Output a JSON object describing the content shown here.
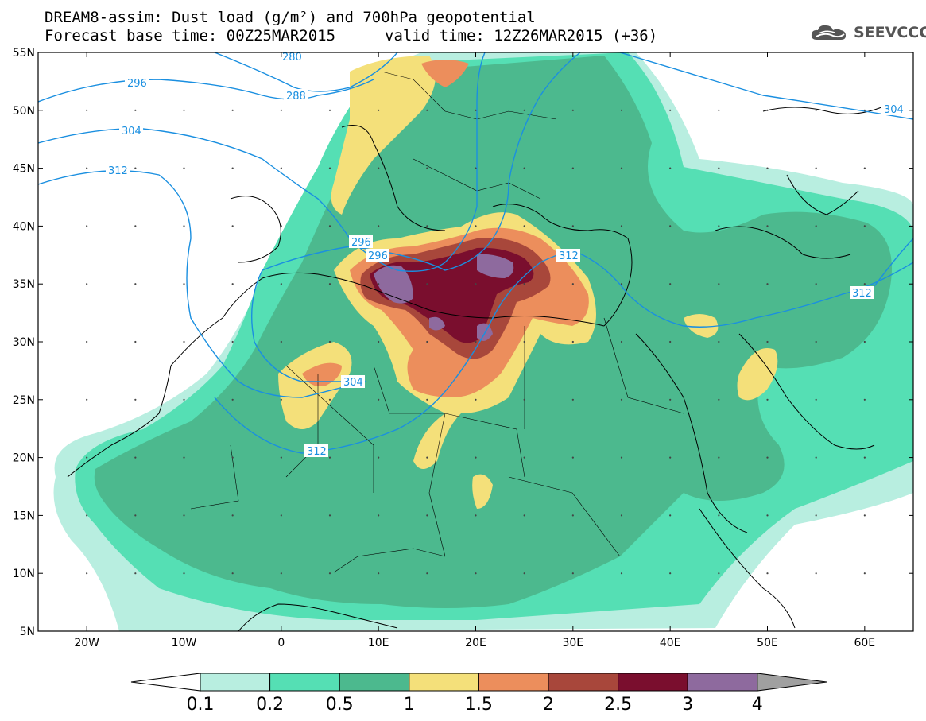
{
  "title": {
    "line1": "DREAM8-assim: Dust load (g/m²) and 700hPa geopotential",
    "line2a": "Forecast base time: 00Z25MAR2015",
    "line2b": "valid time: 12Z26MAR2015 (+36)"
  },
  "logo": {
    "text": "SEEVCCC",
    "icon": "cloud-icon"
  },
  "axes": {
    "lat_labels": [
      "55N",
      "50N",
      "45N",
      "40N",
      "35N",
      "30N",
      "25N",
      "20N",
      "15N",
      "10N",
      "5N"
    ],
    "lat_values": [
      55,
      50,
      45,
      40,
      35,
      30,
      25,
      20,
      15,
      10,
      5
    ],
    "lon_labels": [
      "20W",
      "10W",
      "0",
      "10E",
      "20E",
      "30E",
      "40E",
      "50E",
      "60E"
    ],
    "lon_values": [
      -20,
      -10,
      0,
      10,
      20,
      30,
      40,
      50,
      60
    ],
    "lon_range": [
      -25,
      65
    ],
    "lat_range": [
      5,
      55
    ]
  },
  "contours": {
    "color": "#1a8fe0",
    "labels": [
      "280",
      "288",
      "296",
      "304",
      "312",
      "296",
      "296",
      "312",
      "312",
      "304",
      "312",
      "304"
    ]
  },
  "colorbar": {
    "labels": [
      "0.1",
      "0.2",
      "0.5",
      "1",
      "1.5",
      "2",
      "2.5",
      "3",
      "4"
    ],
    "colors": [
      "#b8eee0",
      "#55dfb4",
      "#4cb98e",
      "#f4e07a",
      "#ec8e5c",
      "#a8473b",
      "#7a0e2e",
      "#8e6a9e",
      "#a0a0a0"
    ],
    "under_color": "#ffffff"
  }
}
